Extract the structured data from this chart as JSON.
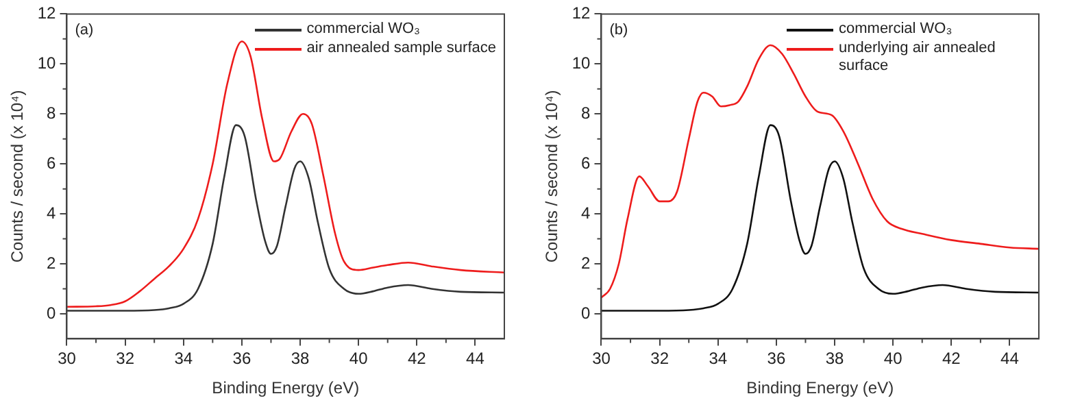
{
  "chart_data": [
    {
      "type": "line",
      "annotations": [
        "(a)"
      ],
      "xlabel": "Binding Energy (eV)",
      "ylabel": "Counts / second (x 10⁴)",
      "xlim": [
        30,
        45
      ],
      "xticks": [
        30,
        32,
        34,
        36,
        38,
        40,
        42,
        44
      ],
      "ylim": [
        -1,
        12
      ],
      "yticks": [
        0,
        2,
        4,
        6,
        8,
        10,
        12
      ],
      "grid": false,
      "legend": "top right",
      "marker": "none",
      "line_style": "solid",
      "series": [
        {
          "name": "commercial WO₃",
          "color": "#333333",
          "x": [
            30,
            31,
            32,
            33,
            33.5,
            34,
            34.5,
            35,
            35.4,
            35.8,
            36.1,
            36.5,
            36.8,
            37,
            37.2,
            37.5,
            37.8,
            38,
            38.3,
            38.6,
            39,
            39.5,
            40,
            40.5,
            41,
            41.7,
            42.5,
            43.5,
            45
          ],
          "values": [
            0.12,
            0.12,
            0.12,
            0.15,
            0.22,
            0.4,
            1,
            2.8,
            5.5,
            7.55,
            7.1,
            4.5,
            2.9,
            2.4,
            2.7,
            4.3,
            5.8,
            6.1,
            5.4,
            3.7,
            1.8,
            1,
            0.8,
            0.9,
            1.05,
            1.15,
            1,
            0.88,
            0.85
          ]
        },
        {
          "name": "air annealed sample surface",
          "color": "#ee1c1c",
          "x": [
            30,
            31,
            31.5,
            32,
            32.5,
            33,
            33.5,
            34,
            34.5,
            35,
            35.5,
            36,
            36.3,
            36.7,
            37.1,
            37.3,
            37.7,
            38.1,
            38.4,
            38.8,
            39.2,
            39.5,
            40,
            40.5,
            41,
            41.7,
            42.5,
            43.5,
            45
          ],
          "values": [
            0.28,
            0.3,
            0.35,
            0.5,
            0.9,
            1.4,
            1.9,
            2.6,
            3.8,
            6,
            9.2,
            10.9,
            10.3,
            7.8,
            6.1,
            6.2,
            7.3,
            8,
            7.6,
            5.5,
            3.2,
            2.1,
            1.75,
            1.85,
            1.95,
            2.05,
            1.9,
            1.75,
            1.65
          ]
        }
      ]
    },
    {
      "type": "line",
      "annotations": [
        "(b)"
      ],
      "xlabel": "Binding Energy (eV)",
      "ylabel": "Counts / second (x 10⁴)",
      "xlim": [
        30,
        45
      ],
      "xticks": [
        30,
        32,
        34,
        36,
        38,
        40,
        42,
        44
      ],
      "ylim": [
        -1,
        12
      ],
      "yticks": [
        0,
        2,
        4,
        6,
        8,
        10,
        12
      ],
      "grid": false,
      "legend": "top right",
      "marker": "none",
      "line_style": "solid",
      "series": [
        {
          "name": "commercial WO₃",
          "color": "#111111",
          "x": [
            30,
            31,
            32,
            33,
            33.5,
            34,
            34.5,
            35,
            35.4,
            35.8,
            36.1,
            36.5,
            36.8,
            37,
            37.2,
            37.5,
            37.8,
            38,
            38.3,
            38.6,
            39,
            39.5,
            40,
            40.5,
            41,
            41.7,
            42.5,
            43.5,
            45
          ],
          "values": [
            0.12,
            0.12,
            0.12,
            0.15,
            0.22,
            0.4,
            1,
            2.8,
            5.5,
            7.55,
            7.1,
            4.5,
            2.9,
            2.4,
            2.7,
            4.3,
            5.8,
            6.1,
            5.4,
            3.7,
            1.8,
            1,
            0.8,
            0.9,
            1.05,
            1.15,
            1,
            0.88,
            0.85
          ]
        },
        {
          "name": "underlying air annealed surface",
          "color": "#ee1c1c",
          "x": [
            30,
            30.3,
            30.6,
            30.9,
            31.3,
            31.6,
            32,
            32.3,
            32.6,
            33,
            33.3,
            33.5,
            33.8,
            34.1,
            34.4,
            34.7,
            35,
            35.4,
            35.8,
            36.2,
            36.6,
            37,
            37.4,
            37.9,
            38.3,
            38.8,
            39.3,
            39.8,
            40.3,
            41,
            42,
            43,
            44,
            45
          ],
          "values": [
            0.65,
            1,
            2,
            3.8,
            5.5,
            5.1,
            4.5,
            4.5,
            4.9,
            7,
            8.5,
            8.85,
            8.7,
            8.3,
            8.35,
            8.5,
            9.1,
            10.2,
            10.75,
            10.4,
            9.6,
            8.7,
            8.1,
            7.95,
            7.3,
            6,
            4.6,
            3.7,
            3.4,
            3.2,
            2.95,
            2.8,
            2.65,
            2.6
          ]
        }
      ]
    }
  ]
}
